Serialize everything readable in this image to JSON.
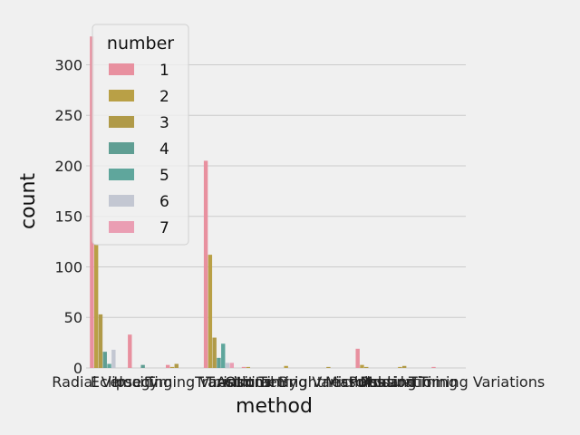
{
  "chart_data": {
    "type": "bar",
    "xlabel": "method",
    "ylabel": "count",
    "ylim": [
      0,
      330
    ],
    "yticks": [
      0,
      50,
      100,
      150,
      200,
      250,
      300
    ],
    "grid": true,
    "legend": {
      "title": "number",
      "placement": "top-left",
      "entries": [
        "1",
        "2",
        "3",
        "4",
        "5",
        "6",
        "7"
      ]
    },
    "categories": [
      "Radial Velocity",
      "Imaging",
      "Eclipse Timing Variations",
      "Transit",
      "Astrometry",
      "Transit Timing Variations",
      "Orbital Brightness Modulation",
      "Microlensing",
      "Pulsar Timing",
      "Pulsation Timing Variations"
    ],
    "series": [
      {
        "name": "1",
        "color": "#e8909f",
        "values": [
          328,
          33,
          3,
          205,
          1,
          0,
          0,
          19,
          0,
          1
        ]
      },
      {
        "name": "2",
        "color": "#b9a046",
        "values": [
          122,
          0,
          1,
          112,
          1,
          2,
          0,
          3,
          1,
          0
        ]
      },
      {
        "name": "3",
        "color": "#b09a48",
        "values": [
          53,
          0,
          4,
          30,
          0,
          0,
          1,
          1,
          2,
          0
        ]
      },
      {
        "name": "4",
        "color": "#5f9e93",
        "values": [
          16,
          3,
          0,
          10,
          0,
          0,
          0,
          0,
          0,
          0
        ]
      },
      {
        "name": "5",
        "color": "#5fa69c",
        "values": [
          4,
          0,
          0,
          24,
          0,
          0,
          0,
          0,
          0,
          0
        ]
      },
      {
        "name": "6",
        "color": "#c3c7d2",
        "values": [
          18,
          0,
          0,
          5,
          0,
          0,
          0,
          0,
          0,
          0
        ]
      },
      {
        "name": "7",
        "color": "#ea9eb3",
        "values": [
          0,
          0,
          0,
          5,
          0,
          0,
          0,
          0,
          0,
          0
        ]
      }
    ]
  }
}
